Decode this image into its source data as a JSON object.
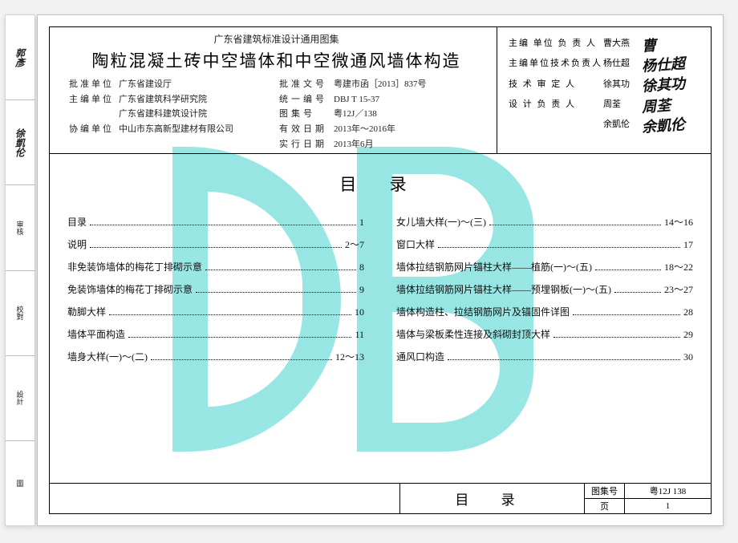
{
  "leftStrip": {
    "cells": [
      {
        "sig": true,
        "text": "郭彥"
      },
      {
        "sig": true,
        "text": "徐凱伦"
      },
      {
        "sig": false,
        "text": "审核"
      },
      {
        "sig": false,
        "text": "校對"
      },
      {
        "sig": false,
        "text": "設計"
      },
      {
        "sig": false,
        "text": "圖"
      }
    ]
  },
  "header": {
    "series": "广东省建筑标准设计通用图集",
    "title": "陶粒混凝土砖中空墙体和中空微通风墙体构造",
    "leftRows": [
      {
        "l1": "批准单位",
        "v1": "广东省建设厅",
        "l2": "批准文号",
        "v2": "粤建市函［2013］837号",
        "l1ls": "sp",
        "l2ls": "sp"
      },
      {
        "l1": "主编单位",
        "v1": "广东省建筑科学研究院",
        "l2": "统一编号",
        "v2": "DBJ T 15-37",
        "l1ls": "sp",
        "l2ls": "sp"
      },
      {
        "l1": "",
        "v1": "广东省建科建筑设计院",
        "l2": "图集号",
        "v2": "粤12J／138",
        "l1ls": "",
        "l2ls": "sp"
      },
      {
        "l1": "协编单位",
        "v1": "中山市东高新型建材有限公司",
        "l2": "有效日期",
        "v2": "2013年～2016年",
        "l1ls": "sp",
        "l2ls": "sp"
      },
      {
        "l1": "",
        "v1": "",
        "l2": "实行日期",
        "v2": "2013年6月",
        "l1ls": "",
        "l2ls": "sp"
      }
    ],
    "rightRows": [
      {
        "label": "主编 单位 负 责 人",
        "name": "曹大燕",
        "sig": "曹"
      },
      {
        "label": "主编单位技术负责人",
        "name": "杨仕超",
        "sig": "杨仕超"
      },
      {
        "label": "技 术 审 定 人",
        "name": "徐其功",
        "sig": "徐其功"
      },
      {
        "label": "设 计 负 责 人",
        "name": "周荃",
        "sig": "周荃"
      },
      {
        "label": "",
        "name": "余凱伦",
        "sig": "余凱伦"
      }
    ]
  },
  "toc": {
    "heading": "目 录",
    "leftCol": [
      {
        "label": "目录",
        "page": "1"
      },
      {
        "label": "说明",
        "page": "2～7"
      },
      {
        "label": "非免装饰墙体的梅花丁排砌示意",
        "page": "8"
      },
      {
        "label": "免装饰墙体的梅花丁排砌示意",
        "page": "9"
      },
      {
        "label": "勒脚大样",
        "page": "10"
      },
      {
        "label": "墙体平面构造",
        "page": "11"
      },
      {
        "label": "墙身大样(一)～(二)",
        "page": "12～13"
      }
    ],
    "rightCol": [
      {
        "label": "女儿墙大样(一)～(三)",
        "page": "14～16"
      },
      {
        "label": "窗口大样",
        "page": "17"
      },
      {
        "label": "墙体拉结钢筋网片锚柱大样——植筋(一)～(五)",
        "page": "18～22"
      },
      {
        "label": "墙体拉结钢筋网片锚柱大样——预埋钢板(一)～(五)",
        "page": "23～27"
      },
      {
        "label": "墙体构造柱、拉结钢筋网片及锚固件详图",
        "page": "28"
      },
      {
        "label": "墙体与梁板柔性连接及斜砌封顶大样",
        "page": "29"
      },
      {
        "label": "通风口构造",
        "page": "30"
      }
    ]
  },
  "footer": {
    "title": "目 录",
    "cells": {
      "a": "图集号",
      "b": "粤12J 138",
      "c": "页",
      "d": "1"
    }
  }
}
